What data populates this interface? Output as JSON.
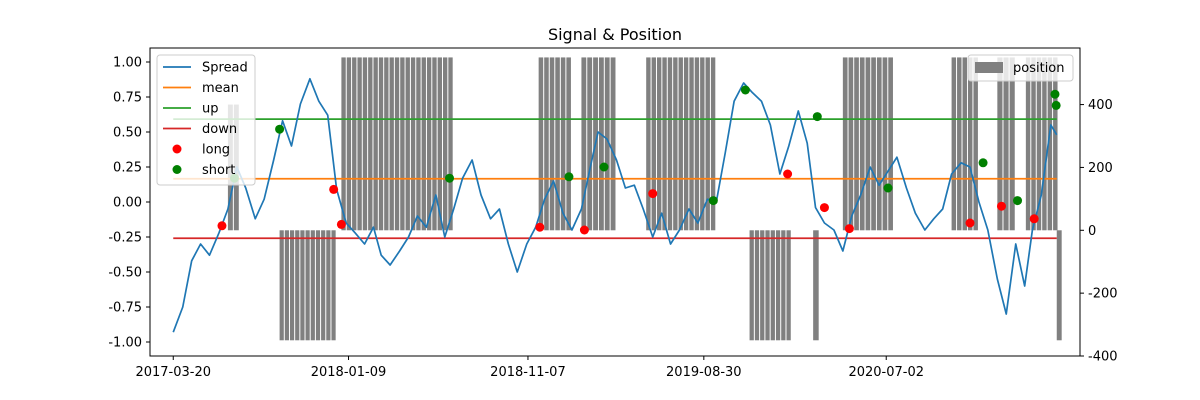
{
  "chart_data": {
    "type": "line",
    "title": "Signal & Position",
    "x_ticks": [
      "2017-03-20",
      "2018-01-09",
      "2018-11-07",
      "2019-08-30",
      "2020-07-02"
    ],
    "x_range": [
      "2017-03-20",
      "2021-04-15"
    ],
    "y_left": {
      "range": [
        -1.1,
        1.1
      ],
      "ticks": [
        "-1.00",
        "-0.75",
        "-0.50",
        "-0.25",
        "0.00",
        "0.25",
        "0.50",
        "0.75",
        "1.00"
      ]
    },
    "y_right": {
      "range": [
        -400,
        580
      ],
      "ticks": [
        "-400",
        "-200",
        "0",
        "200",
        "400"
      ]
    },
    "colors": {
      "spread": "#1f77b4",
      "mean": "#ff7f0e",
      "up": "#2ca02c",
      "down": "#d62728",
      "long": "#ff0000",
      "short": "#008000",
      "position": "#808080"
    },
    "series": [
      {
        "name": "Spread",
        "points": [
          [
            "2017-03-20",
            -0.93
          ],
          [
            "2017-04-05",
            -0.75
          ],
          [
            "2017-04-20",
            -0.42
          ],
          [
            "2017-05-05",
            -0.3
          ],
          [
            "2017-05-20",
            -0.38
          ],
          [
            "2017-06-05",
            -0.22
          ],
          [
            "2017-06-20",
            -0.05
          ],
          [
            "2017-07-05",
            0.25
          ],
          [
            "2017-07-20",
            0.1
          ],
          [
            "2017-08-05",
            -0.12
          ],
          [
            "2017-08-20",
            0.02
          ],
          [
            "2017-09-05",
            0.3
          ],
          [
            "2017-09-20",
            0.58
          ],
          [
            "2017-10-05",
            0.4
          ],
          [
            "2017-10-20",
            0.7
          ],
          [
            "2017-11-05",
            0.88
          ],
          [
            "2017-11-20",
            0.72
          ],
          [
            "2017-12-05",
            0.62
          ],
          [
            "2017-12-20",
            0.09
          ],
          [
            "2018-01-05",
            -0.15
          ],
          [
            "2018-01-20",
            -0.22
          ],
          [
            "2018-02-05",
            -0.3
          ],
          [
            "2018-02-20",
            -0.18
          ],
          [
            "2018-03-05",
            -0.38
          ],
          [
            "2018-03-20",
            -0.45
          ],
          [
            "2018-04-05",
            -0.35
          ],
          [
            "2018-04-20",
            -0.25
          ],
          [
            "2018-05-05",
            -0.1
          ],
          [
            "2018-05-20",
            -0.18
          ],
          [
            "2018-06-05",
            0.05
          ],
          [
            "2018-06-20",
            -0.25
          ],
          [
            "2018-07-05",
            -0.05
          ],
          [
            "2018-07-20",
            0.17
          ],
          [
            "2018-08-05",
            0.3
          ],
          [
            "2018-08-20",
            0.05
          ],
          [
            "2018-09-05",
            -0.12
          ],
          [
            "2018-09-20",
            -0.05
          ],
          [
            "2018-10-05",
            -0.3
          ],
          [
            "2018-10-20",
            -0.5
          ],
          [
            "2018-11-05",
            -0.3
          ],
          [
            "2018-11-20",
            -0.18
          ],
          [
            "2018-12-05",
            0.02
          ],
          [
            "2018-12-20",
            0.15
          ],
          [
            "2019-01-05",
            -0.08
          ],
          [
            "2019-01-20",
            -0.2
          ],
          [
            "2019-02-05",
            -0.05
          ],
          [
            "2019-02-20",
            0.25
          ],
          [
            "2019-03-05",
            0.5
          ],
          [
            "2019-03-20",
            0.45
          ],
          [
            "2019-04-05",
            0.3
          ],
          [
            "2019-04-20",
            0.1
          ],
          [
            "2019-05-05",
            0.12
          ],
          [
            "2019-05-20",
            -0.05
          ],
          [
            "2019-06-05",
            -0.25
          ],
          [
            "2019-06-20",
            -0.08
          ],
          [
            "2019-07-05",
            -0.3
          ],
          [
            "2019-07-20",
            -0.2
          ],
          [
            "2019-08-05",
            -0.05
          ],
          [
            "2019-08-20",
            -0.15
          ],
          [
            "2019-09-05",
            0.02
          ],
          [
            "2019-09-20",
            0.0
          ],
          [
            "2019-10-05",
            0.35
          ],
          [
            "2019-10-20",
            0.72
          ],
          [
            "2019-11-05",
            0.85
          ],
          [
            "2019-11-20",
            0.78
          ],
          [
            "2019-12-05",
            0.72
          ],
          [
            "2019-12-20",
            0.55
          ],
          [
            "2020-01-05",
            0.2
          ],
          [
            "2020-01-20",
            0.4
          ],
          [
            "2020-02-05",
            0.65
          ],
          [
            "2020-02-20",
            0.42
          ],
          [
            "2020-03-05",
            -0.04
          ],
          [
            "2020-03-20",
            -0.15
          ],
          [
            "2020-04-05",
            -0.2
          ],
          [
            "2020-04-20",
            -0.35
          ],
          [
            "2020-05-05",
            -0.1
          ],
          [
            "2020-05-20",
            0.05
          ],
          [
            "2020-06-05",
            0.25
          ],
          [
            "2020-06-20",
            0.12
          ],
          [
            "2020-07-05",
            0.22
          ],
          [
            "2020-07-20",
            0.32
          ],
          [
            "2020-08-05",
            0.1
          ],
          [
            "2020-08-20",
            -0.08
          ],
          [
            "2020-09-05",
            -0.2
          ],
          [
            "2020-09-20",
            -0.12
          ],
          [
            "2020-10-05",
            -0.05
          ],
          [
            "2020-10-20",
            0.2
          ],
          [
            "2020-11-05",
            0.28
          ],
          [
            "2020-11-20",
            0.25
          ],
          [
            "2020-12-05",
            0.0
          ],
          [
            "2020-12-20",
            -0.2
          ],
          [
            "2021-01-05",
            -0.55
          ],
          [
            "2021-01-20",
            -0.8
          ],
          [
            "2021-02-05",
            -0.3
          ],
          [
            "2021-02-20",
            -0.6
          ],
          [
            "2021-03-05",
            -0.2
          ],
          [
            "2021-03-20",
            0.05
          ],
          [
            "2021-04-05",
            0.55
          ],
          [
            "2021-04-15",
            0.48
          ]
        ]
      },
      {
        "name": "mean",
        "value": 0.166
      },
      {
        "name": "up",
        "value": 0.592
      },
      {
        "name": "down",
        "value": -0.259
      }
    ],
    "long_signals": [
      [
        "2017-06-10",
        -0.17
      ],
      [
        "2017-12-15",
        0.09
      ],
      [
        "2017-12-28",
        -0.16
      ],
      [
        "2018-11-27",
        -0.18
      ],
      [
        "2019-02-10",
        -0.2
      ],
      [
        "2019-06-05",
        0.06
      ],
      [
        "2020-01-18",
        0.2
      ],
      [
        "2020-03-20",
        -0.04
      ],
      [
        "2020-05-01",
        -0.19
      ],
      [
        "2020-11-20",
        -0.15
      ],
      [
        "2021-01-12",
        -0.03
      ],
      [
        "2021-03-08",
        -0.12
      ]
    ],
    "short_signals": [
      [
        "2017-07-01",
        0.17
      ],
      [
        "2017-09-15",
        0.52
      ],
      [
        "2018-06-28",
        0.17
      ],
      [
        "2019-01-15",
        0.18
      ],
      [
        "2019-03-15",
        0.25
      ],
      [
        "2019-09-15",
        0.01
      ],
      [
        "2019-11-08",
        0.8
      ],
      [
        "2020-03-08",
        0.61
      ],
      [
        "2020-07-05",
        0.1
      ],
      [
        "2020-12-12",
        0.28
      ],
      [
        "2021-02-08",
        0.01
      ],
      [
        "2021-04-12",
        0.77
      ],
      [
        "2021-04-14",
        0.69
      ]
    ],
    "position_blocks": [
      {
        "start": "2017-06-20",
        "end": "2017-07-10",
        "value": 400
      },
      {
        "start": "2017-09-15",
        "end": "2017-12-20",
        "value": -350
      },
      {
        "start": "2017-12-28",
        "end": "2018-07-05",
        "value": 550
      },
      {
        "start": "2018-11-25",
        "end": "2019-01-20",
        "value": 550
      },
      {
        "start": "2019-02-05",
        "end": "2019-04-05",
        "value": 550
      },
      {
        "start": "2019-05-25",
        "end": "2019-09-20",
        "value": 550
      },
      {
        "start": "2019-11-15",
        "end": "2020-01-25",
        "value": -350
      },
      {
        "start": "2020-03-01",
        "end": "2020-03-12",
        "value": -350
      },
      {
        "start": "2020-04-20",
        "end": "2020-07-15",
        "value": 550
      },
      {
        "start": "2020-10-20",
        "end": "2020-12-05",
        "value": 550
      },
      {
        "start": "2021-01-05",
        "end": "2021-02-05",
        "value": 550
      },
      {
        "start": "2021-02-22",
        "end": "2021-04-18",
        "value": 550
      },
      {
        "start": "2021-04-15",
        "end": "2021-04-25",
        "value": -350
      }
    ],
    "legend_left": [
      "Spread",
      "mean",
      "up",
      "down",
      "long",
      "short"
    ],
    "legend_right": [
      "position"
    ],
    "legend_left_placement": "upper-left",
    "legend_right_placement": "upper-right",
    "grid": false
  }
}
